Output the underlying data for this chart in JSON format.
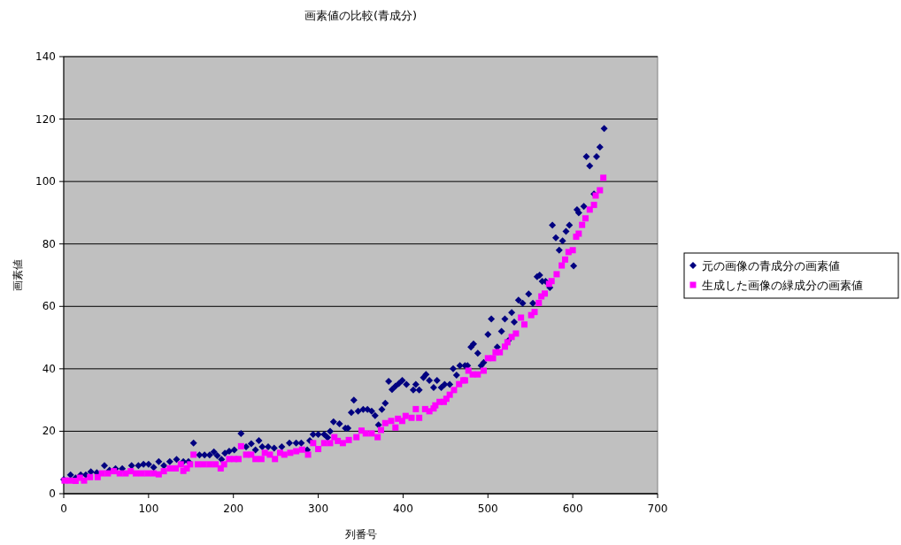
{
  "chart_data": {
    "type": "scatter",
    "title": "画素値の比較(青成分)",
    "xlabel": "列番号",
    "ylabel": "画素値",
    "xlim": [
      0,
      700
    ],
    "xticks": [
      0,
      100,
      200,
      300,
      400,
      500,
      600,
      700
    ],
    "ylim": [
      0,
      140
    ],
    "yticks": [
      0,
      20,
      40,
      60,
      80,
      100,
      120,
      140
    ],
    "grid": "y",
    "legend": "right",
    "series": [
      {
        "name": "元の画像の青成分の画素値",
        "color": "#000080",
        "marker": "diamond",
        "x": [
          0,
          8,
          14,
          20,
          26,
          32,
          39,
          48,
          54,
          61,
          69,
          80,
          88,
          94,
          100,
          106,
          112,
          118,
          125,
          133,
          141,
          147,
          153,
          160,
          166,
          172,
          177,
          181,
          186,
          190,
          195,
          201,
          209,
          215,
          221,
          226,
          230,
          234,
          241,
          248,
          257,
          266,
          274,
          280,
          287,
          290,
          294,
          300,
          307,
          311,
          314,
          318,
          325,
          332,
          335,
          339,
          342,
          347,
          353,
          358,
          363,
          367,
          371,
          375,
          379,
          383,
          387,
          391,
          395,
          399,
          404,
          412,
          415,
          419,
          424,
          427,
          431,
          436,
          440,
          445,
          449,
          455,
          459,
          463,
          467,
          473,
          476,
          480,
          483,
          488,
          492,
          495,
          500,
          504,
          511,
          516,
          520,
          524,
          528,
          531,
          536,
          541,
          548,
          553,
          558,
          561,
          564,
          568,
          573,
          576,
          580,
          584,
          588,
          592,
          596,
          601,
          605,
          607,
          613,
          616,
          620,
          625,
          628,
          632,
          637
        ],
        "values": [
          4.5,
          6,
          5,
          6,
          6,
          7,
          6.7,
          9,
          7.5,
          8,
          8,
          9,
          9,
          9.4,
          9.4,
          8.4,
          10.3,
          9,
          10.3,
          11,
          10.3,
          10.3,
          16.2,
          12.4,
          12.4,
          12.4,
          13.4,
          12.2,
          11,
          13,
          13.6,
          14,
          19.3,
          15,
          16,
          14,
          17,
          15,
          15,
          14.6,
          15,
          16.2,
          16.2,
          16.2,
          14,
          17,
          19,
          19,
          19,
          18,
          20,
          23,
          22.4,
          21,
          21,
          26,
          30,
          26.4,
          27,
          27,
          26.4,
          25,
          22,
          27,
          29,
          36,
          33.4,
          34.4,
          35.3,
          36.3,
          35,
          33.2,
          35,
          33.2,
          37.2,
          38.2,
          36.3,
          34,
          36.3,
          34,
          35,
          35,
          40,
          38,
          41,
          41,
          41,
          47,
          48,
          45,
          41,
          42,
          51,
          56,
          47,
          52,
          56,
          49,
          58,
          55,
          62,
          61,
          64,
          61,
          69.5,
          70,
          68,
          68,
          66,
          86,
          82,
          78,
          81,
          84,
          86,
          73,
          91,
          90,
          92,
          108,
          105,
          96,
          108,
          111,
          117
        ]
      },
      {
        "name": "生成した画像の緑成分の画素値",
        "color": "#ff00ff",
        "marker": "square",
        "x": [
          1,
          7,
          14,
          19,
          24,
          31,
          40,
          45,
          52,
          59,
          66,
          73,
          79,
          85,
          92,
          99,
          106,
          112,
          118,
          125,
          132,
          138,
          141,
          145,
          149,
          153,
          158,
          165,
          172,
          179,
          185,
          189,
          195,
          201,
          206,
          209,
          215,
          221,
          226,
          233,
          237,
          243,
          249,
          255,
          260,
          267,
          274,
          281,
          288,
          294,
          300,
          307,
          314,
          319,
          323,
          329,
          336,
          345,
          351,
          356,
          363,
          370,
          374,
          379,
          386,
          391,
          394,
          399,
          403,
          410,
          415,
          419,
          426,
          431,
          436,
          438,
          443,
          448,
          451,
          455,
          460,
          466,
          471,
          473,
          477,
          482,
          488,
          495,
          500,
          506,
          509,
          514,
          520,
          523,
          528,
          533,
          539,
          543,
          551,
          555,
          560,
          563,
          567,
          572,
          575,
          581,
          587,
          591,
          595,
          600,
          604,
          607,
          611,
          615,
          620,
          625,
          627,
          632,
          636
        ],
        "values": [
          4.2,
          4.2,
          4.1,
          5.1,
          4.2,
          5.3,
          5.3,
          6.5,
          6.5,
          7.2,
          6.5,
          6.5,
          7.2,
          6.5,
          6.5,
          6.5,
          6.5,
          6.2,
          7.2,
          8.1,
          8.1,
          9.4,
          7.3,
          8.1,
          9.4,
          12.5,
          9.4,
          9.4,
          9.4,
          9.4,
          8.1,
          9.4,
          11.1,
          11.1,
          11.1,
          15.2,
          12.5,
          12.5,
          11.1,
          11.1,
          13.1,
          12.5,
          11.1,
          13.1,
          12.5,
          13.1,
          13.6,
          14.1,
          12.5,
          16.2,
          14.3,
          16.2,
          16.2,
          18.1,
          16.9,
          16.2,
          17.2,
          18.1,
          20.2,
          19.3,
          19.3,
          18.1,
          20.4,
          22.6,
          23.3,
          21.2,
          24,
          23.3,
          24.9,
          24.3,
          27.1,
          24.3,
          27.1,
          26.4,
          27.3,
          28.3,
          29.4,
          29.4,
          30.4,
          31.7,
          33.2,
          35.1,
          36.3,
          36.3,
          39.4,
          38.2,
          38.2,
          39.4,
          43.4,
          43.4,
          45.3,
          45.3,
          47.1,
          48.5,
          50.2,
          51.3,
          56.4,
          54.2,
          57.2,
          58.2,
          61.1,
          63.2,
          64.1,
          67.2,
          68.1,
          70.3,
          73.1,
          75,
          77.4,
          78,
          82.3,
          83.3,
          86.1,
          88.2,
          91,
          92.5,
          95.5,
          97.2,
          101.2
        ]
      }
    ]
  }
}
